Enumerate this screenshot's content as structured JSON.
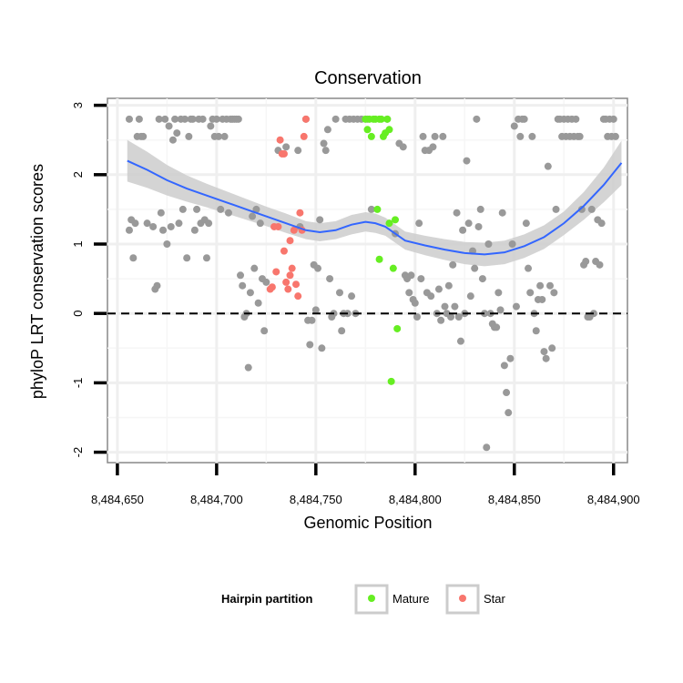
{
  "chart_data": {
    "type": "scatter",
    "title": "Conservation",
    "xlabel": "Genomic Position",
    "ylabel": "phyloP LRT conservation scores",
    "xlim": [
      8484645,
      8484907
    ],
    "ylim": [
      -2.15,
      3.1
    ],
    "x_ticks": [
      8484650,
      8484700,
      8484750,
      8484800,
      8484850,
      8484900
    ],
    "x_tick_labels": [
      "8,484,650",
      "8,484,700",
      "8,484,750",
      "8,484,800",
      "8,484,850",
      "8,484,900"
    ],
    "y_ticks": [
      -2,
      -1,
      0,
      1,
      2,
      3
    ],
    "y_tick_labels": [
      "-2",
      "-1",
      "0",
      "1",
      "2",
      "3"
    ],
    "reference_line": {
      "y": 0,
      "style": "dashed",
      "color": "#000000"
    },
    "legend": {
      "title": "Hairpin partition",
      "entries": [
        {
          "label": "Mature",
          "color": "#66ee22"
        },
        {
          "label": "Star",
          "color": "#f8766d"
        }
      ]
    },
    "colors": {
      "background_points": "#999999",
      "Mature": "#66ee22",
      "Star": "#f8766d",
      "smooth_line": "#3366ff",
      "smooth_band": "#cccccc"
    },
    "series": [
      {
        "name": "Other",
        "points": [
          [
            8484656,
            2.8
          ],
          [
            8484657,
            1.35
          ],
          [
            8484656,
            1.2
          ],
          [
            8484658,
            0.8
          ],
          [
            8484659,
            1.3
          ],
          [
            8484660,
            2.55
          ],
          [
            8484661,
            2.8
          ],
          [
            8484662,
            2.55
          ],
          [
            8484663,
            2.55
          ],
          [
            8484665,
            1.3
          ],
          [
            8484668,
            1.25
          ],
          [
            8484669,
            0.35
          ],
          [
            8484670,
            0.4
          ],
          [
            8484671,
            2.8
          ],
          [
            8484672,
            1.45
          ],
          [
            8484673,
            1.2
          ],
          [
            8484674,
            2.8
          ],
          [
            8484675,
            1.0
          ],
          [
            8484676,
            2.7
          ],
          [
            8484677,
            1.25
          ],
          [
            8484678,
            2.5
          ],
          [
            8484679,
            2.8
          ],
          [
            8484680,
            2.6
          ],
          [
            8484681,
            1.3
          ],
          [
            8484682,
            2.8
          ],
          [
            8484683,
            1.5
          ],
          [
            8484684,
            2.8
          ],
          [
            8484685,
            0.8
          ],
          [
            8484686,
            2.55
          ],
          [
            8484687,
            2.8
          ],
          [
            8484688,
            2.8
          ],
          [
            8484689,
            1.2
          ],
          [
            8484690,
            1.5
          ],
          [
            8484691,
            2.8
          ],
          [
            8484692,
            1.3
          ],
          [
            8484693,
            2.8
          ],
          [
            8484694,
            1.35
          ],
          [
            8484695,
            0.8
          ],
          [
            8484696,
            1.3
          ],
          [
            8484697,
            2.7
          ],
          [
            8484698,
            2.8
          ],
          [
            8484699,
            2.55
          ],
          [
            8484700,
            2.8
          ],
          [
            8484701,
            2.55
          ],
          [
            8484702,
            1.5
          ],
          [
            8484703,
            2.8
          ],
          [
            8484704,
            2.55
          ],
          [
            8484705,
            2.8
          ],
          [
            8484706,
            1.45
          ],
          [
            8484707,
            2.8
          ],
          [
            8484708,
            2.8
          ],
          [
            8484709,
            2.8
          ],
          [
            8484710,
            2.8
          ],
          [
            8484711,
            2.8
          ],
          [
            8484712,
            0.55
          ],
          [
            8484713,
            0.4
          ],
          [
            8484714,
            -0.05
          ],
          [
            8484715,
            0.0
          ],
          [
            8484716,
            -0.78
          ],
          [
            8484717,
            0.3
          ],
          [
            8484718,
            1.4
          ],
          [
            8484719,
            0.65
          ],
          [
            8484720,
            1.5
          ],
          [
            8484721,
            0.15
          ],
          [
            8484722,
            1.3
          ],
          [
            8484723,
            0.5
          ],
          [
            8484724,
            -0.25
          ],
          [
            8484725,
            0.45
          ],
          [
            8484731,
            2.35
          ],
          [
            8484735,
            2.4
          ],
          [
            8484741,
            2.35
          ],
          [
            8484742,
            1.25
          ],
          [
            8484745,
            2.8
          ],
          [
            8484746,
            -0.1
          ],
          [
            8484747,
            -0.45
          ],
          [
            8484748,
            -0.1
          ],
          [
            8484749,
            0.7
          ],
          [
            8484750,
            0.05
          ],
          [
            8484751,
            0.65
          ],
          [
            8484752,
            1.35
          ],
          [
            8484753,
            -0.5
          ],
          [
            8484754,
            2.45
          ],
          [
            8484755,
            2.35
          ],
          [
            8484756,
            2.65
          ],
          [
            8484757,
            0.5
          ],
          [
            8484758,
            -0.05
          ],
          [
            8484759,
            0.0
          ],
          [
            8484760,
            2.8
          ],
          [
            8484762,
            0.3
          ],
          [
            8484763,
            -0.25
          ],
          [
            8484764,
            0.0
          ],
          [
            8484765,
            2.8
          ],
          [
            8484766,
            0.0
          ],
          [
            8484767,
            2.8
          ],
          [
            8484768,
            0.25
          ],
          [
            8484769,
            2.8
          ],
          [
            8484770,
            0.0
          ],
          [
            8484771,
            2.8
          ],
          [
            8484773,
            2.8
          ],
          [
            8484776,
            2.8
          ],
          [
            8484778,
            1.5
          ],
          [
            8484786,
            2.8
          ],
          [
            8484790,
            1.15
          ],
          [
            8484792,
            2.45
          ],
          [
            8484794,
            2.4
          ],
          [
            8484795,
            0.55
          ],
          [
            8484796,
            0.5
          ],
          [
            8484797,
            0.3
          ],
          [
            8484798,
            0.55
          ],
          [
            8484799,
            0.2
          ],
          [
            8484800,
            0.15
          ],
          [
            8484801,
            -0.05
          ],
          [
            8484802,
            1.3
          ],
          [
            8484803,
            0.5
          ],
          [
            8484804,
            2.55
          ],
          [
            8484805,
            2.35
          ],
          [
            8484806,
            0.3
          ],
          [
            8484807,
            2.35
          ],
          [
            8484808,
            0.25
          ],
          [
            8484809,
            2.4
          ],
          [
            8484810,
            2.55
          ],
          [
            8484811,
            0.0
          ],
          [
            8484812,
            0.35
          ],
          [
            8484813,
            -0.1
          ],
          [
            8484814,
            2.55
          ],
          [
            8484815,
            0.1
          ],
          [
            8484816,
            0.0
          ],
          [
            8484817,
            0.4
          ],
          [
            8484818,
            -0.05
          ],
          [
            8484819,
            0.7
          ],
          [
            8484820,
            0.1
          ],
          [
            8484821,
            1.45
          ],
          [
            8484822,
            -0.05
          ],
          [
            8484823,
            -0.4
          ],
          [
            8484824,
            1.2
          ],
          [
            8484825,
            0.0
          ],
          [
            8484826,
            2.2
          ],
          [
            8484827,
            1.3
          ],
          [
            8484828,
            0.25
          ],
          [
            8484829,
            0.9
          ],
          [
            8484830,
            0.65
          ],
          [
            8484831,
            2.8
          ],
          [
            8484832,
            1.25
          ],
          [
            8484833,
            1.5
          ],
          [
            8484834,
            0.5
          ],
          [
            8484835,
            0.0
          ],
          [
            8484836,
            -1.93
          ],
          [
            8484837,
            1.0
          ],
          [
            8484838,
            0.0
          ],
          [
            8484839,
            -0.15
          ],
          [
            8484840,
            -0.2
          ],
          [
            8484841,
            -0.2
          ],
          [
            8484842,
            0.3
          ],
          [
            8484843,
            0.05
          ],
          [
            8484844,
            1.45
          ],
          [
            8484845,
            -0.75
          ],
          [
            8484846,
            -1.14
          ],
          [
            8484847,
            -1.43
          ],
          [
            8484848,
            -0.65
          ],
          [
            8484849,
            1.0
          ],
          [
            8484850,
            2.7
          ],
          [
            8484851,
            0.1
          ],
          [
            8484852,
            2.8
          ],
          [
            8484853,
            2.55
          ],
          [
            8484854,
            2.8
          ],
          [
            8484855,
            2.8
          ],
          [
            8484856,
            1.3
          ],
          [
            8484857,
            0.65
          ],
          [
            8484858,
            0.3
          ],
          [
            8484859,
            2.55
          ],
          [
            8484860,
            0.0
          ],
          [
            8484861,
            -0.25
          ],
          [
            8484862,
            0.2
          ],
          [
            8484863,
            0.4
          ],
          [
            8484864,
            0.2
          ],
          [
            8484865,
            -0.55
          ],
          [
            8484866,
            -0.65
          ],
          [
            8484867,
            2.12
          ],
          [
            8484868,
            0.4
          ],
          [
            8484869,
            -0.5
          ],
          [
            8484870,
            0.3
          ],
          [
            8484871,
            1.5
          ],
          [
            8484872,
            2.8
          ],
          [
            8484873,
            2.8
          ],
          [
            8484874,
            2.55
          ],
          [
            8484875,
            2.8
          ],
          [
            8484876,
            2.55
          ],
          [
            8484877,
            2.8
          ],
          [
            8484878,
            2.55
          ],
          [
            8484879,
            2.8
          ],
          [
            8484880,
            2.55
          ],
          [
            8484881,
            2.8
          ],
          [
            8484882,
            2.55
          ],
          [
            8484883,
            2.55
          ],
          [
            8484884,
            1.5
          ],
          [
            8484885,
            0.7
          ],
          [
            8484886,
            0.75
          ],
          [
            8484887,
            -0.05
          ],
          [
            8484888,
            -0.05
          ],
          [
            8484889,
            1.5
          ],
          [
            8484890,
            0.0
          ],
          [
            8484891,
            0.75
          ],
          [
            8484892,
            1.35
          ],
          [
            8484893,
            0.7
          ],
          [
            8484894,
            1.3
          ],
          [
            8484895,
            2.8
          ],
          [
            8484896,
            2.8
          ],
          [
            8484897,
            2.55
          ],
          [
            8484898,
            2.8
          ],
          [
            8484899,
            2.55
          ],
          [
            8484900,
            2.8
          ],
          [
            8484901,
            2.55
          ]
        ]
      },
      {
        "name": "Mature",
        "points": [
          [
            8484775,
            2.8
          ],
          [
            8484776,
            2.65
          ],
          [
            8484777,
            2.8
          ],
          [
            8484778,
            2.55
          ],
          [
            8484779,
            2.8
          ],
          [
            8484780,
            2.8
          ],
          [
            8484781,
            1.5
          ],
          [
            8484782,
            2.8
          ],
          [
            8484782,
            0.78
          ],
          [
            8484783,
            2.8
          ],
          [
            8484784,
            2.55
          ],
          [
            8484785,
            2.6
          ],
          [
            8484786,
            2.8
          ],
          [
            8484787,
            1.3
          ],
          [
            8484787,
            2.65
          ],
          [
            8484788,
            -0.98
          ],
          [
            8484789,
            0.65
          ],
          [
            8484790,
            1.35
          ],
          [
            8484791,
            -0.22
          ]
        ]
      },
      {
        "name": "Star",
        "points": [
          [
            8484727,
            0.35
          ],
          [
            8484728,
            0.38
          ],
          [
            8484729,
            1.25
          ],
          [
            8484730,
            0.6
          ],
          [
            8484731,
            1.25
          ],
          [
            8484732,
            2.5
          ],
          [
            8484733,
            2.3
          ],
          [
            8484734,
            2.3
          ],
          [
            8484734,
            0.9
          ],
          [
            8484735,
            0.45
          ],
          [
            8484736,
            0.35
          ],
          [
            8484737,
            0.55
          ],
          [
            8484737,
            1.05
          ],
          [
            8484738,
            0.65
          ],
          [
            8484739,
            1.2
          ],
          [
            8484740,
            0.42
          ],
          [
            8484741,
            0.25
          ],
          [
            8484742,
            1.45
          ],
          [
            8484743,
            1.2
          ],
          [
            8484744,
            2.55
          ],
          [
            8484745,
            2.8
          ]
        ]
      }
    ],
    "smooth": {
      "x": [
        8484655,
        8484665,
        8484675,
        8484685,
        8484695,
        8484705,
        8484715,
        8484725,
        8484735,
        8484745,
        8484752,
        8484760,
        8484768,
        8484775,
        8484780,
        8484785,
        8484790,
        8484795,
        8484805,
        8484815,
        8484825,
        8484835,
        8484845,
        8484855,
        8484865,
        8484875,
        8484885,
        8484895,
        8484904
      ],
      "y": [
        2.2,
        2.07,
        1.92,
        1.8,
        1.7,
        1.6,
        1.5,
        1.4,
        1.3,
        1.2,
        1.17,
        1.2,
        1.28,
        1.32,
        1.3,
        1.25,
        1.15,
        1.05,
        0.98,
        0.92,
        0.87,
        0.85,
        0.88,
        0.97,
        1.1,
        1.3,
        1.55,
        1.85,
        2.17
      ],
      "se": [
        0.3,
        0.26,
        0.22,
        0.19,
        0.17,
        0.16,
        0.15,
        0.14,
        0.14,
        0.13,
        0.13,
        0.13,
        0.14,
        0.14,
        0.14,
        0.13,
        0.13,
        0.13,
        0.14,
        0.15,
        0.16,
        0.17,
        0.17,
        0.17,
        0.17,
        0.17,
        0.2,
        0.25,
        0.32
      ]
    }
  }
}
